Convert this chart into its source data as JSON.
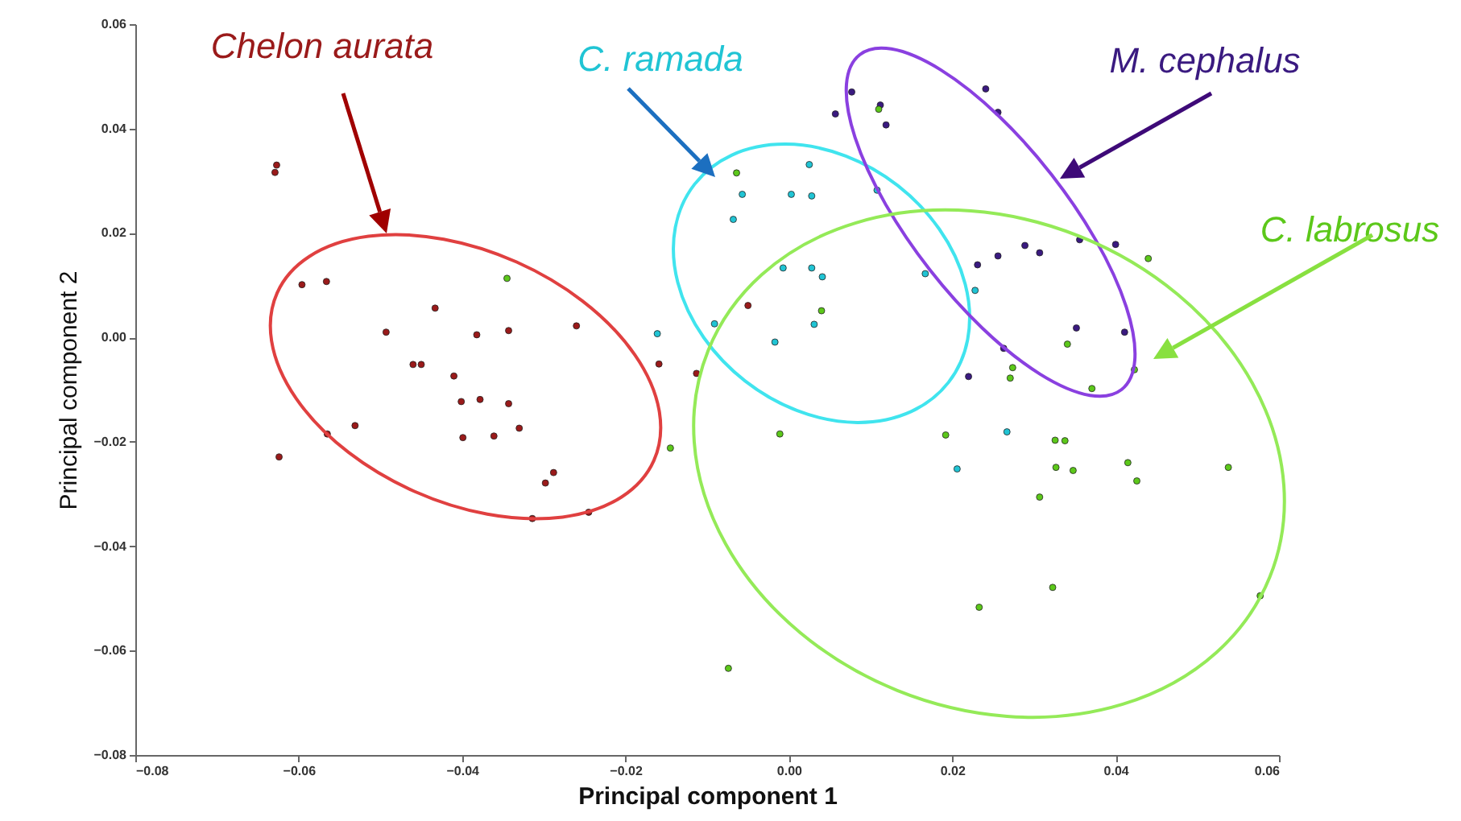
{
  "chart_data": {
    "type": "scatter",
    "xlabel": "Principal component 1",
    "ylabel": "Principal component 2",
    "xlim": [
      -0.08,
      0.06
    ],
    "xticks": [
      -0.08,
      -0.06,
      -0.04,
      -0.02,
      {
        "value": 0,
        "label": "0.00"
      },
      0.02,
      0.04,
      0.06
    ],
    "ylim": [
      -0.08,
      0.06
    ],
    "yticks": [
      -0.08,
      -0.06,
      -0.04,
      -0.02,
      {
        "value": 0,
        "label": "0.00"
      },
      0.02,
      0.04,
      0.06
    ],
    "grid": false,
    "marker": "circle",
    "series": [
      {
        "name": "Chelon aurata",
        "color": "#9a1a1a",
        "x": [
          -0.0627,
          -0.0629,
          -0.0596,
          -0.0566,
          -0.0433,
          -0.0493,
          -0.0382,
          -0.0343,
          -0.026,
          -0.046,
          -0.045,
          -0.041,
          -0.0401,
          -0.0378,
          -0.0343,
          -0.0531,
          -0.0565,
          -0.0624,
          -0.0399,
          -0.0361,
          -0.033,
          -0.0288,
          -0.0298,
          -0.0314,
          -0.0245,
          -0.0159,
          -0.005,
          -0.0113
        ],
        "values": [
          0.033,
          0.0316,
          0.0101,
          0.0107,
          0.0056,
          0.001,
          0.0005,
          0.0013,
          0.0022,
          -0.0052,
          -0.0052,
          -0.0074,
          -0.0123,
          -0.0119,
          -0.0127,
          -0.0169,
          -0.0185,
          -0.0229,
          -0.0192,
          -0.0189,
          -0.0174,
          -0.0259,
          -0.0279,
          -0.0347,
          -0.0335,
          -0.0051,
          0.0061,
          -0.0069
        ]
      },
      {
        "name": "C. ramada",
        "color": "#20c4d4",
        "x": [
          0.0025,
          -0.0057,
          0.0003,
          0.0028,
          -0.0068,
          -0.0007,
          0.0028,
          0.0041,
          0.0031,
          -0.0017,
          -0.0161,
          -0.0091,
          0.0108,
          0.0167,
          0.0228,
          0.0267,
          0.0206
        ],
        "values": [
          0.0331,
          0.0274,
          0.0274,
          0.0271,
          0.0226,
          0.0133,
          0.0133,
          0.0116,
          0.0025,
          -0.0009,
          0.0007,
          0.0026,
          0.0282,
          0.0122,
          0.009,
          -0.0181,
          -0.0252
        ]
      },
      {
        "name": "M. cephalus",
        "color": "#3a1a80",
        "x": [
          0.0077,
          0.0112,
          0.0057,
          0.0119,
          0.0241,
          0.0256,
          0.0356,
          0.04,
          0.0289,
          0.0307,
          0.0256,
          0.0231,
          0.0352,
          0.0411,
          0.0263,
          0.022
        ],
        "values": [
          0.047,
          0.0445,
          0.0428,
          0.0407,
          0.0476,
          0.0431,
          0.0187,
          0.0178,
          0.0176,
          0.0162,
          0.0156,
          0.0139,
          0.0018,
          0.001,
          -0.0021,
          -0.0075
        ]
      },
      {
        "name": "C. labrosus",
        "color": "#5cc81a",
        "x": [
          -0.0345,
          -0.0145,
          -0.0064,
          0.004,
          0.011,
          -0.0011,
          0.044,
          0.0341,
          0.0274,
          0.0271,
          0.0423,
          0.0371,
          0.0192,
          0.0326,
          0.0338,
          0.0327,
          0.0348,
          0.0415,
          0.0426,
          0.0538,
          0.0307,
          0.0323,
          0.0233,
          0.0577,
          -0.0074
        ],
        "values": [
          0.0113,
          -0.0212,
          0.0315,
          0.0051,
          0.0437,
          -0.0185,
          0.0151,
          -0.0013,
          -0.0058,
          -0.0078,
          -0.0062,
          -0.0098,
          -0.0187,
          -0.0197,
          -0.0198,
          -0.0249,
          -0.0255,
          -0.024,
          -0.0275,
          -0.0249,
          -0.0306,
          -0.0479,
          -0.0517,
          -0.0495,
          -0.0634
        ]
      }
    ]
  }
}
